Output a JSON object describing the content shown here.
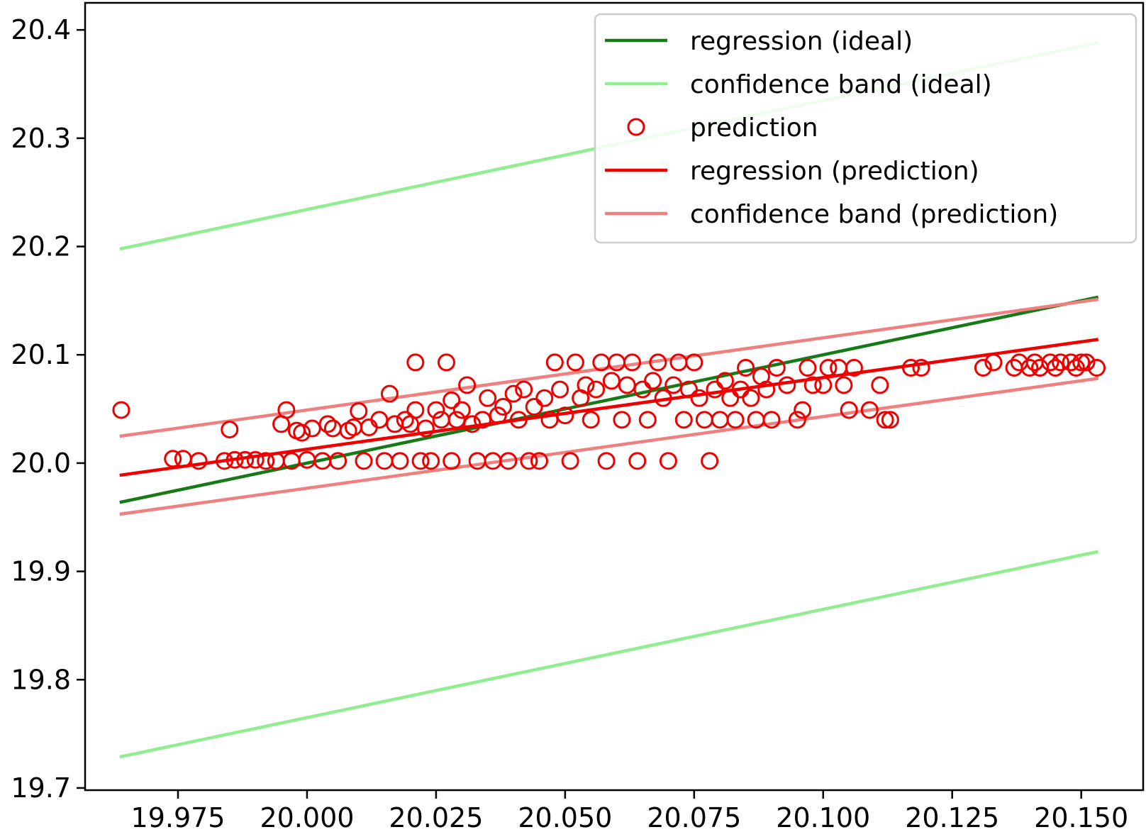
{
  "chart_data": {
    "type": "scatter",
    "title": "",
    "xlabel": "",
    "ylabel": "",
    "xlim": [
      19.957,
      20.162
    ],
    "ylim": [
      19.698,
      20.425
    ],
    "xticks": [
      "19.975",
      "20.000",
      "20.025",
      "20.050",
      "20.075",
      "20.100",
      "20.125",
      "20.150"
    ],
    "yticks": [
      "19.7",
      "19.8",
      "19.9",
      "20.0",
      "20.1",
      "20.2",
      "20.3",
      "20.4"
    ],
    "grid": false,
    "legend_position": "top-right",
    "legend": [
      {
        "label": "regression (ideal)",
        "kind": "line",
        "color": "#167a16"
      },
      {
        "label": "confidence band (ideal)",
        "kind": "line",
        "color": "#90ee90"
      },
      {
        "label": "prediction",
        "kind": "marker",
        "color": "#ee0000"
      },
      {
        "label": "regression (prediction)",
        "kind": "line",
        "color": "#ee0000"
      },
      {
        "label": "confidence band (prediction)",
        "kind": "line",
        "color": "#f08080"
      }
    ],
    "lines": [
      {
        "name": "regression (ideal)",
        "color": "#167a16",
        "x": [
          19.964,
          20.153
        ],
        "y": [
          19.964,
          20.153
        ]
      },
      {
        "name": "confidence band (ideal) upper",
        "color": "#90ee90",
        "x": [
          19.964,
          20.153
        ],
        "y": [
          20.198,
          20.388
        ]
      },
      {
        "name": "confidence band (ideal) lower",
        "color": "#90ee90",
        "x": [
          19.964,
          20.153
        ],
        "y": [
          19.729,
          19.918
        ]
      },
      {
        "name": "regression (prediction)",
        "color": "#ee0000",
        "x": [
          19.964,
          20.153
        ],
        "y": [
          19.989,
          20.114
        ]
      },
      {
        "name": "confidence band (prediction) upper",
        "color": "#f08080",
        "x": [
          19.964,
          20.153
        ],
        "y": [
          20.025,
          20.151
        ]
      },
      {
        "name": "confidence band (prediction) lower",
        "color": "#f08080",
        "x": [
          19.964,
          20.153
        ],
        "y": [
          19.953,
          20.078
        ]
      }
    ],
    "series": [
      {
        "name": "prediction",
        "color": "#ee0000",
        "points": [
          [
            19.964,
            20.049
          ],
          [
            19.974,
            20.004
          ],
          [
            19.976,
            20.004
          ],
          [
            19.979,
            20.002
          ],
          [
            19.984,
            20.002
          ],
          [
            19.985,
            20.031
          ],
          [
            19.986,
            20.003
          ],
          [
            19.988,
            20.003
          ],
          [
            19.99,
            20.003
          ],
          [
            19.992,
            20.002
          ],
          [
            19.994,
            20.002
          ],
          [
            19.995,
            20.036
          ],
          [
            19.996,
            20.049
          ],
          [
            19.997,
            20.002
          ],
          [
            19.998,
            20.03
          ],
          [
            19.999,
            20.028
          ],
          [
            20.0,
            20.003
          ],
          [
            20.001,
            20.032
          ],
          [
            20.003,
            20.002
          ],
          [
            20.004,
            20.036
          ],
          [
            20.005,
            20.032
          ],
          [
            20.006,
            20.002
          ],
          [
            20.008,
            20.03
          ],
          [
            20.009,
            20.033
          ],
          [
            20.01,
            20.048
          ],
          [
            20.011,
            20.002
          ],
          [
            20.012,
            20.033
          ],
          [
            20.014,
            20.04
          ],
          [
            20.015,
            20.002
          ],
          [
            20.016,
            20.064
          ],
          [
            20.017,
            20.036
          ],
          [
            20.018,
            20.002
          ],
          [
            20.019,
            20.04
          ],
          [
            20.02,
            20.036
          ],
          [
            20.021,
            20.049
          ],
          [
            20.021,
            20.093
          ],
          [
            20.022,
            20.002
          ],
          [
            20.023,
            20.032
          ],
          [
            20.024,
            20.002
          ],
          [
            20.025,
            20.049
          ],
          [
            20.026,
            20.04
          ],
          [
            20.027,
            20.093
          ],
          [
            20.028,
            20.002
          ],
          [
            20.028,
            20.058
          ],
          [
            20.029,
            20.04
          ],
          [
            20.03,
            20.049
          ],
          [
            20.031,
            20.072
          ],
          [
            20.032,
            20.036
          ],
          [
            20.033,
            20.002
          ],
          [
            20.034,
            20.04
          ],
          [
            20.035,
            20.06
          ],
          [
            20.036,
            20.002
          ],
          [
            20.037,
            20.044
          ],
          [
            20.038,
            20.052
          ],
          [
            20.039,
            20.002
          ],
          [
            20.04,
            20.064
          ],
          [
            20.041,
            20.04
          ],
          [
            20.042,
            20.068
          ],
          [
            20.043,
            20.002
          ],
          [
            20.044,
            20.052
          ],
          [
            20.045,
            20.002
          ],
          [
            20.046,
            20.06
          ],
          [
            20.047,
            20.04
          ],
          [
            20.048,
            20.093
          ],
          [
            20.049,
            20.068
          ],
          [
            20.05,
            20.044
          ],
          [
            20.051,
            20.002
          ],
          [
            20.052,
            20.093
          ],
          [
            20.053,
            20.06
          ],
          [
            20.054,
            20.072
          ],
          [
            20.055,
            20.04
          ],
          [
            20.056,
            20.068
          ],
          [
            20.057,
            20.093
          ],
          [
            20.058,
            20.002
          ],
          [
            20.059,
            20.076
          ],
          [
            20.06,
            20.093
          ],
          [
            20.061,
            20.04
          ],
          [
            20.062,
            20.072
          ],
          [
            20.063,
            20.093
          ],
          [
            20.064,
            20.002
          ],
          [
            20.065,
            20.068
          ],
          [
            20.066,
            20.04
          ],
          [
            20.067,
            20.076
          ],
          [
            20.068,
            20.093
          ],
          [
            20.069,
            20.06
          ],
          [
            20.07,
            20.002
          ],
          [
            20.071,
            20.072
          ],
          [
            20.072,
            20.093
          ],
          [
            20.073,
            20.04
          ],
          [
            20.074,
            20.068
          ],
          [
            20.075,
            20.093
          ],
          [
            20.076,
            20.06
          ],
          [
            20.077,
            20.04
          ],
          [
            20.078,
            20.002
          ],
          [
            20.079,
            20.068
          ],
          [
            20.08,
            20.04
          ],
          [
            20.081,
            20.076
          ],
          [
            20.082,
            20.06
          ],
          [
            20.083,
            20.04
          ],
          [
            20.084,
            20.068
          ],
          [
            20.085,
            20.088
          ],
          [
            20.086,
            20.06
          ],
          [
            20.087,
            20.04
          ],
          [
            20.088,
            20.08
          ],
          [
            20.089,
            20.068
          ],
          [
            20.09,
            20.04
          ],
          [
            20.091,
            20.088
          ],
          [
            20.093,
            20.072
          ],
          [
            20.095,
            20.04
          ],
          [
            20.096,
            20.049
          ],
          [
            20.097,
            20.088
          ],
          [
            20.098,
            20.072
          ],
          [
            20.1,
            20.072
          ],
          [
            20.101,
            20.088
          ],
          [
            20.103,
            20.088
          ],
          [
            20.104,
            20.072
          ],
          [
            20.105,
            20.049
          ],
          [
            20.106,
            20.088
          ],
          [
            20.109,
            20.049
          ],
          [
            20.111,
            20.072
          ],
          [
            20.112,
            20.04
          ],
          [
            20.113,
            20.04
          ],
          [
            20.117,
            20.088
          ],
          [
            20.119,
            20.088
          ],
          [
            20.131,
            20.088
          ],
          [
            20.133,
            20.093
          ],
          [
            20.137,
            20.088
          ],
          [
            20.138,
            20.093
          ],
          [
            20.14,
            20.088
          ],
          [
            20.141,
            20.093
          ],
          [
            20.142,
            20.088
          ],
          [
            20.144,
            20.093
          ],
          [
            20.145,
            20.088
          ],
          [
            20.146,
            20.093
          ],
          [
            20.148,
            20.093
          ],
          [
            20.149,
            20.088
          ],
          [
            20.15,
            20.093
          ],
          [
            20.151,
            20.093
          ],
          [
            20.153,
            20.088
          ]
        ]
      }
    ]
  }
}
